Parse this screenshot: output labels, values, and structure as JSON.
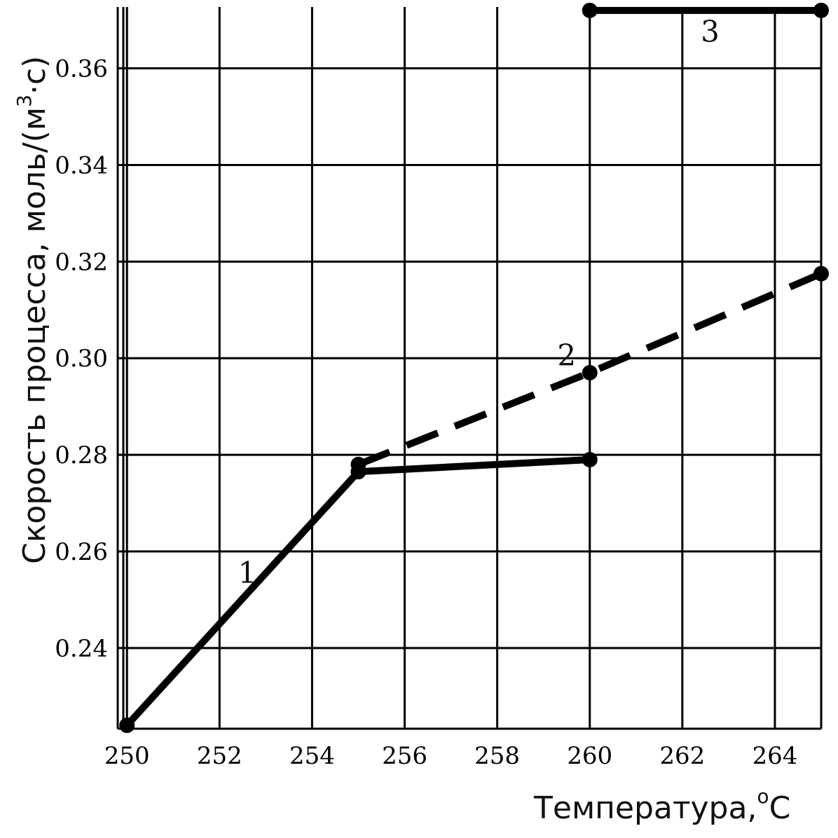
{
  "chart_data": {
    "type": "line",
    "title": "",
    "xlabel": "Температура,",
    "xlabel_unit_sup": "o",
    "xlabel_unit": "C",
    "ylabel": "Скорость процесса, моль/(м",
    "ylabel_sup": "3",
    "ylabel_end": "·c)",
    "xlim": [
      249.8,
      265
    ],
    "ylim": [
      0.2233,
      0.3727
    ],
    "xticks": [
      250,
      252,
      254,
      256,
      258,
      260,
      262,
      264
    ],
    "xtick_labels": [
      "250",
      "252",
      "254",
      "256",
      "258",
      "260",
      "262",
      "264"
    ],
    "yticks": [
      0.24,
      0.26,
      0.28,
      0.3,
      0.32,
      0.34,
      0.36
    ],
    "ytick_labels": [
      "0.24",
      "0.26",
      "0.28",
      "0.30",
      "0.32",
      "0.34",
      "0.36"
    ],
    "grid": true,
    "series": [
      {
        "label": "1",
        "style": "solid",
        "x": [
          250,
          255,
          260
        ],
        "y": [
          0.224,
          0.2765,
          0.279
        ]
      },
      {
        "label": "2",
        "style": "dashed",
        "x": [
          255,
          260,
          265
        ],
        "y": [
          0.278,
          0.297,
          0.3175
        ]
      },
      {
        "label": "3",
        "style": "solid",
        "x": [
          260,
          265
        ],
        "y": [
          0.372,
          0.372
        ]
      }
    ],
    "series_label_anchors": [
      {
        "text": "1",
        "x": 252.6,
        "y": 0.2535
      },
      {
        "text": "2",
        "x": 259.5,
        "y": 0.2985
      },
      {
        "text": "3",
        "x": 262.6,
        "y": 0.3655
      }
    ],
    "colors": {
      "line": "#000000",
      "grid": "#000000",
      "background": "#ffffff"
    }
  }
}
